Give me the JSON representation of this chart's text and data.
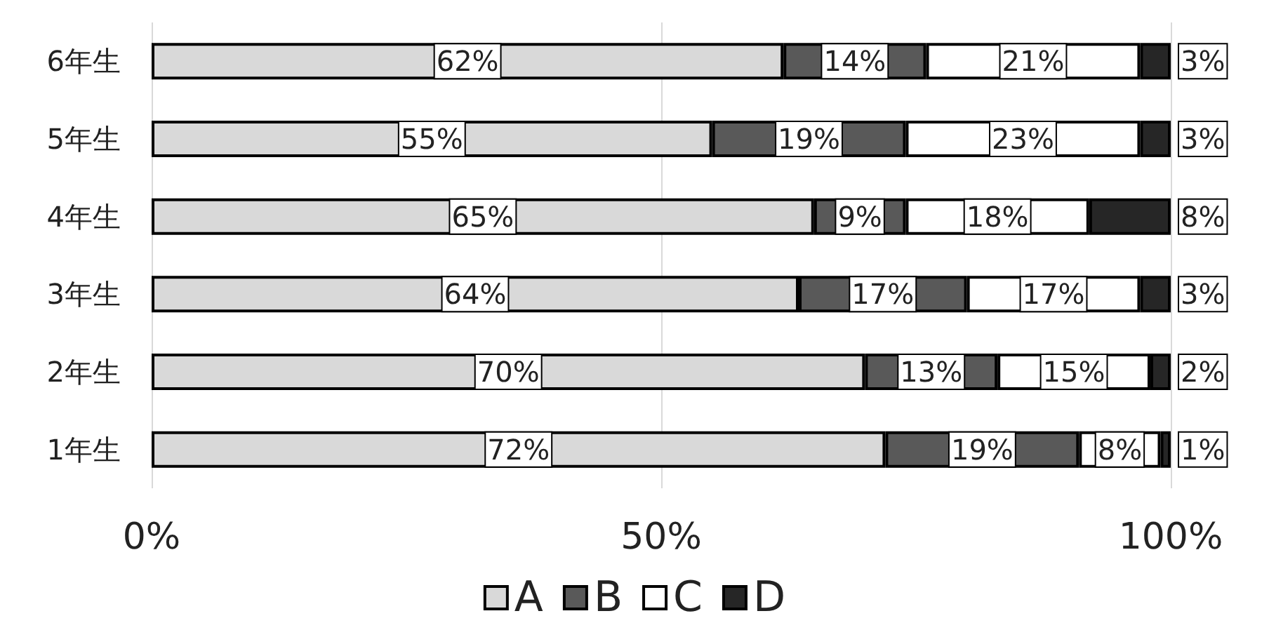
{
  "chart_data": {
    "type": "bar",
    "orientation": "horizontal",
    "stacked": true,
    "categories": [
      "6年生",
      "5年生",
      "4年生",
      "3年生",
      "2年生",
      "1年生"
    ],
    "series": [
      {
        "name": "A",
        "color": "#d9d9d9",
        "values": [
          62,
          55,
          65,
          63.5,
          70,
          72
        ],
        "value_labels": [
          "62%",
          "55%",
          "65%",
          "64%",
          "70%",
          "72%"
        ]
      },
      {
        "name": "B",
        "color": "#595959",
        "values": [
          14,
          19,
          9,
          16.5,
          13,
          19
        ],
        "value_labels": [
          "14%",
          "19%",
          "9%",
          "17%",
          "13%",
          "19%"
        ]
      },
      {
        "name": "C",
        "color": "#ffffff",
        "values": [
          21,
          23,
          18,
          17,
          15,
          8
        ],
        "value_labels": [
          "21%",
          "23%",
          "18%",
          "17%",
          "15%",
          "8%"
        ]
      },
      {
        "name": "D",
        "color": "#262626",
        "values": [
          3,
          3,
          8,
          3,
          2,
          1
        ],
        "value_labels": [
          "3%",
          "3%",
          "8%",
          "3%",
          "2%",
          "1%"
        ]
      }
    ],
    "xlim": [
      0,
      100
    ],
    "xticks": [
      {
        "value": 0,
        "label": "0%"
      },
      {
        "value": 50,
        "label": "50%"
      },
      {
        "value": 100,
        "label": "100%"
      }
    ],
    "grid": "x",
    "legend": "bottom"
  }
}
